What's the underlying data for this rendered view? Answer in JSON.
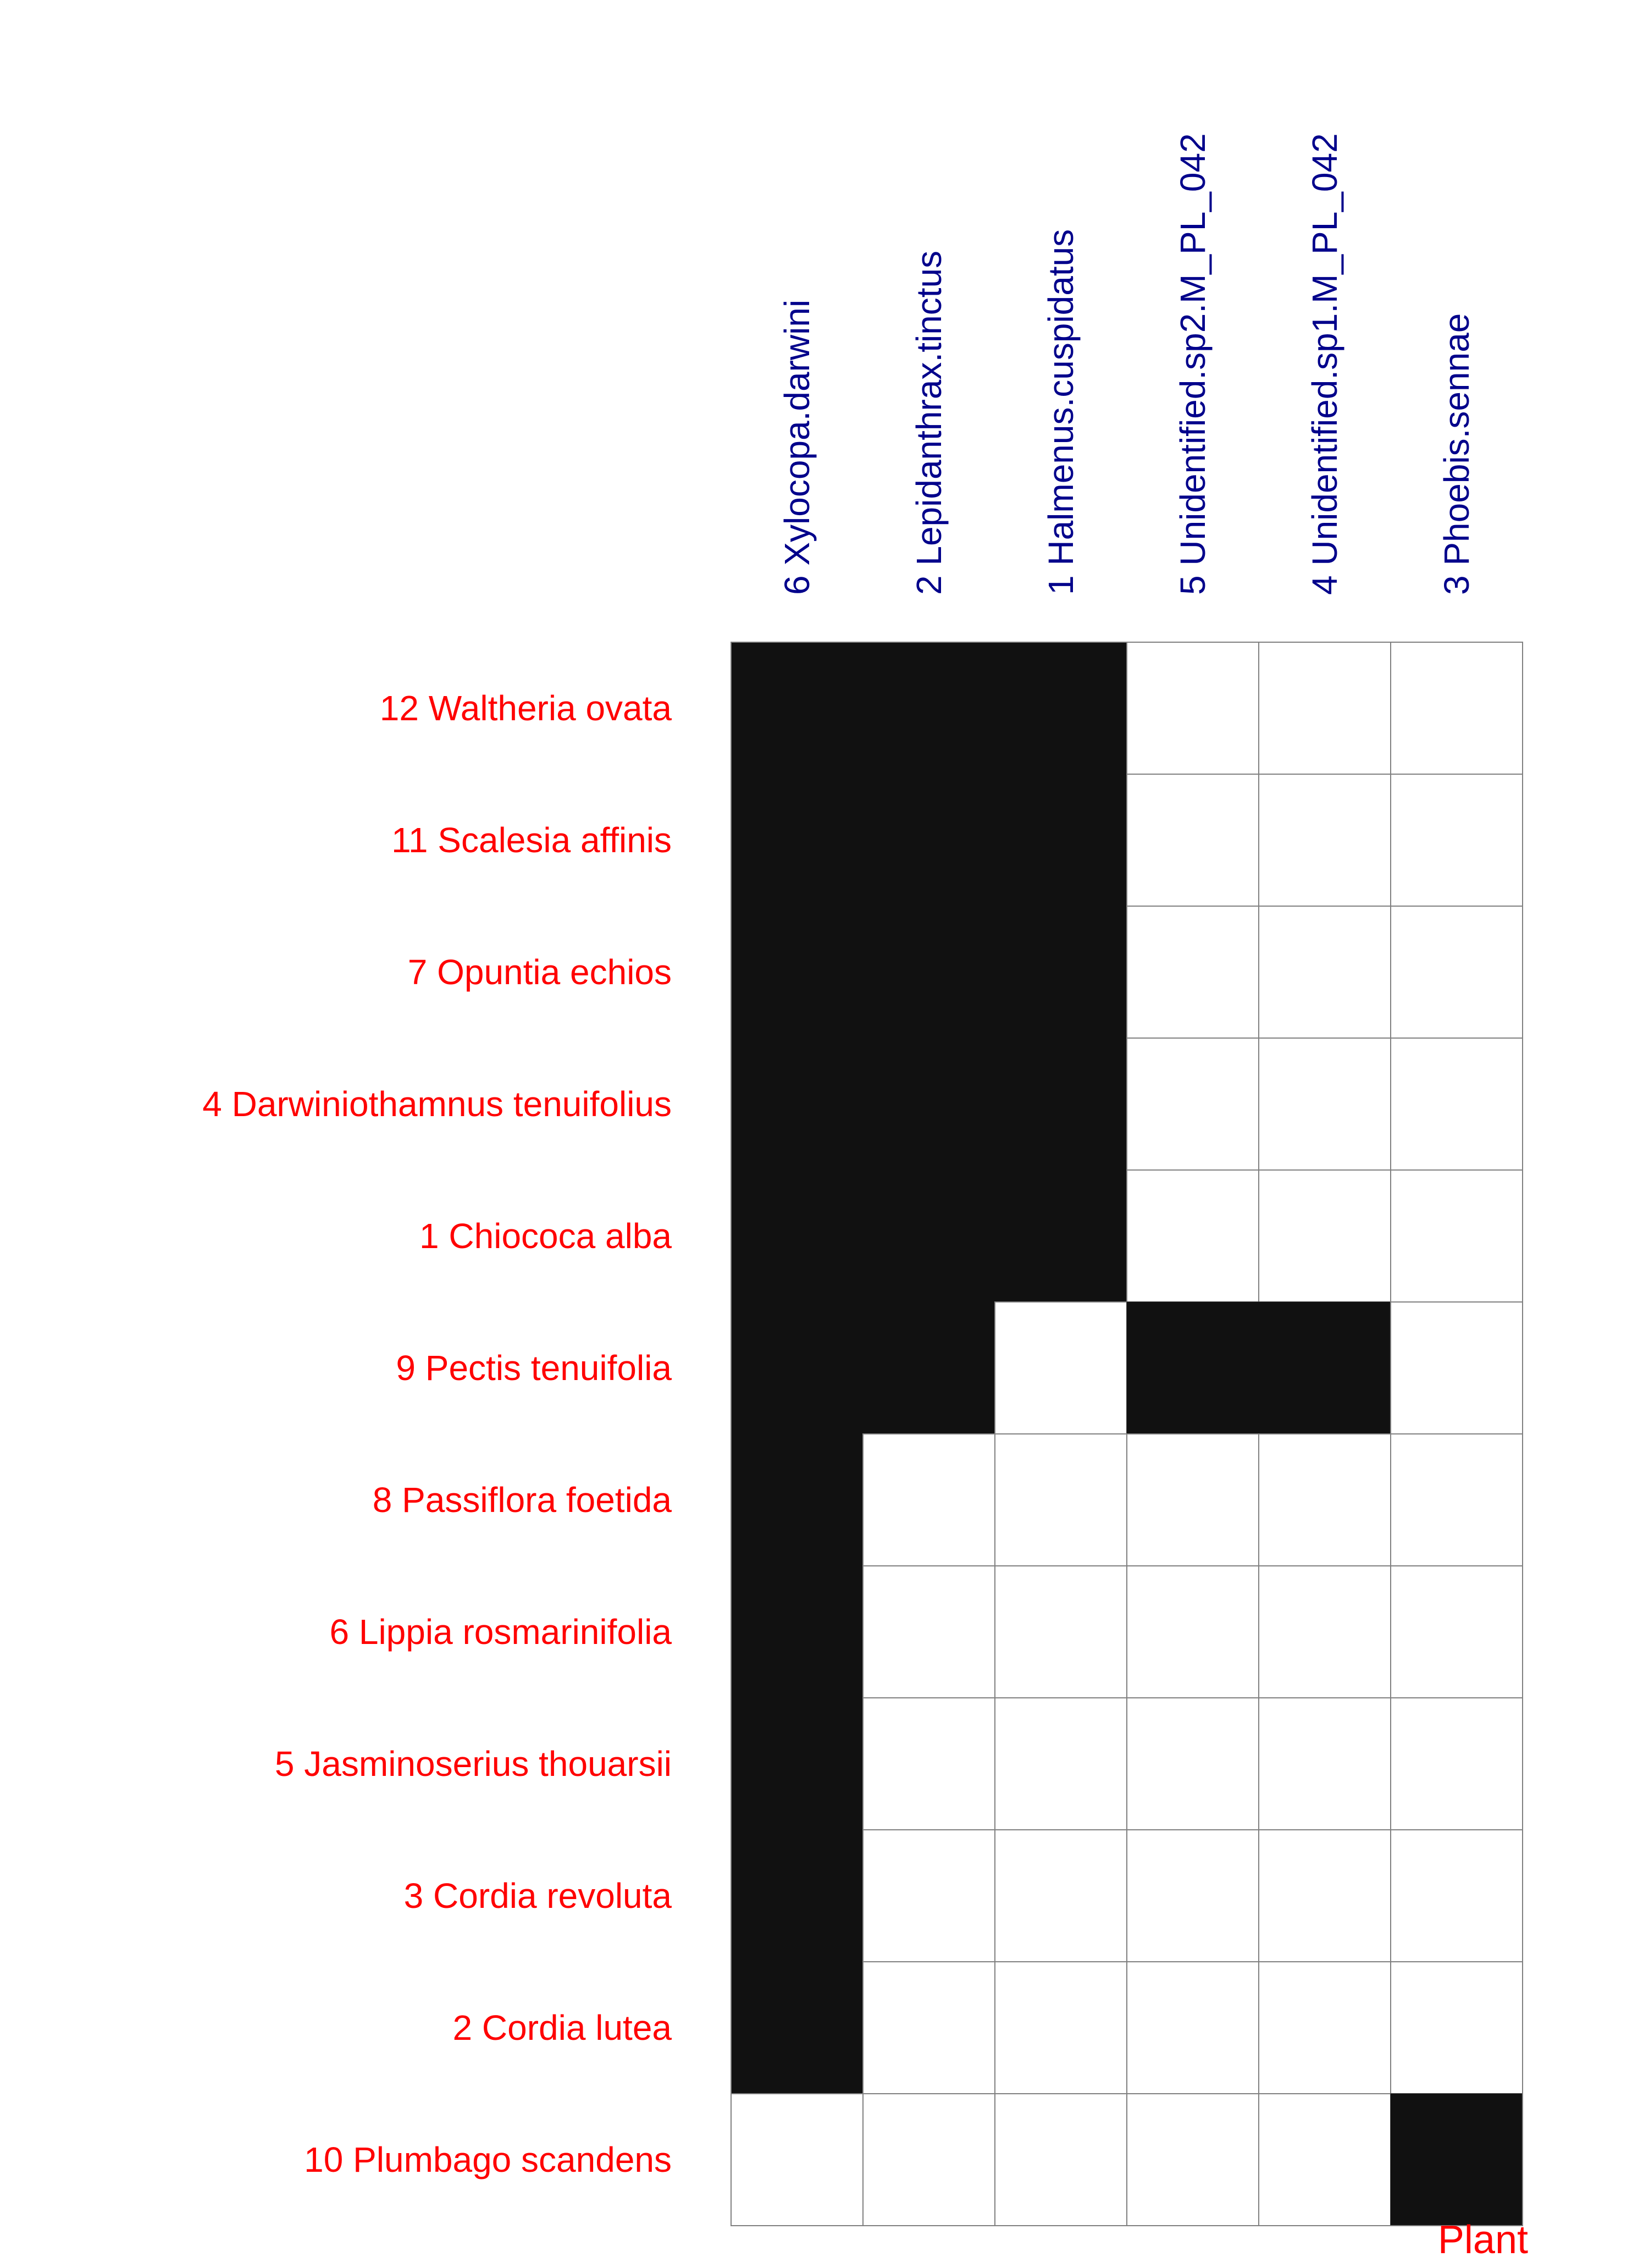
{
  "chart_data": {
    "type": "heatmap",
    "rows": [
      "12 Waltheria ovata",
      "11 Scalesia affinis",
      "7 Opuntia echios",
      "4 Darwiniothamnus tenuifolius",
      "1 Chiococa alba",
      "9 Pectis tenuifolia",
      "8 Passiflora foetida",
      "6 Lippia rosmarinifolia",
      "5 Jasminoserius thouarsii",
      "3 Cordia revoluta",
      "2 Cordia lutea",
      "10 Plumbago scandens"
    ],
    "columns": [
      "6 Xylocopa.darwini",
      "2 Lepidanthrax.tinctus",
      "1 Halmenus.cuspidatus",
      "5 Unidentified.sp2.M_PL_042",
      "4 Unidentified.sp1.M_PL_042",
      "3 Phoebis.sennae"
    ],
    "matrix": [
      [
        1,
        1,
        1,
        0,
        0,
        0
      ],
      [
        1,
        1,
        1,
        0,
        0,
        0
      ],
      [
        1,
        1,
        1,
        0,
        0,
        0
      ],
      [
        1,
        1,
        1,
        0,
        0,
        0
      ],
      [
        1,
        1,
        1,
        0,
        0,
        0
      ],
      [
        1,
        1,
        0,
        1,
        1,
        0
      ],
      [
        1,
        0,
        0,
        0,
        0,
        0
      ],
      [
        1,
        0,
        0,
        0,
        0,
        0
      ],
      [
        1,
        0,
        0,
        0,
        0,
        0
      ],
      [
        1,
        0,
        0,
        0,
        0,
        0
      ],
      [
        1,
        0,
        0,
        0,
        0,
        0
      ],
      [
        0,
        0,
        0,
        0,
        0,
        1
      ]
    ],
    "row_axis_title": "Plant",
    "colors": {
      "filled": "#111111",
      "empty": "#ffffff",
      "grid": "#808080",
      "row_label": "#ff0000",
      "col_label": "#00008b",
      "axis_title": "#ff0000"
    }
  }
}
